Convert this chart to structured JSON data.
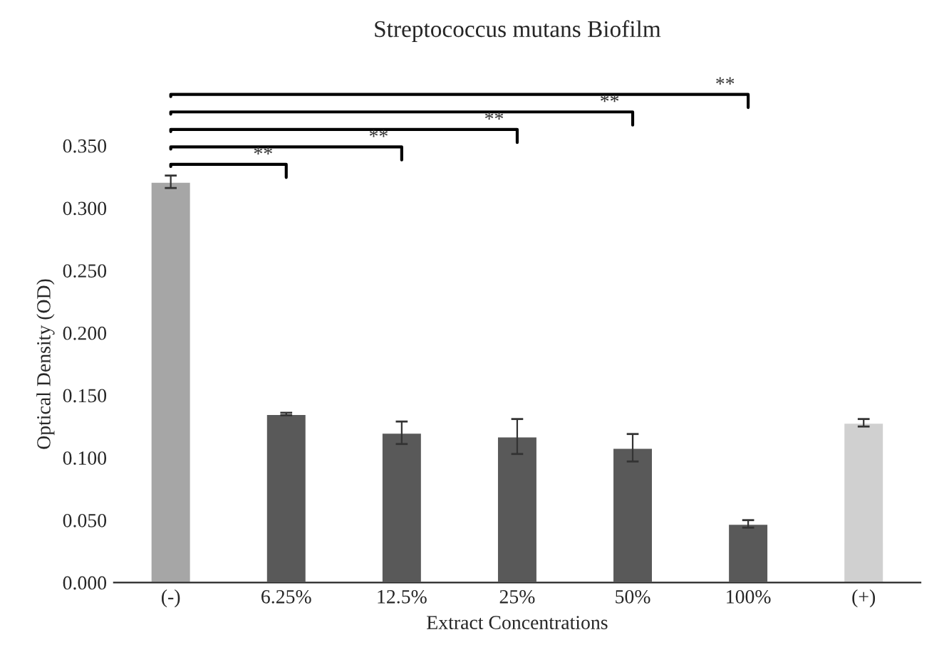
{
  "chart_data": {
    "type": "bar",
    "title": "Streptococcus mutans Biofilm",
    "xlabel": "Extract Concentrations",
    "ylabel": "Optical Density (OD)",
    "categories": [
      "(-)",
      "6.25%",
      "12.5%",
      "25%",
      "50%",
      "100%",
      "(+)"
    ],
    "values": [
      0.321,
      0.135,
      0.12,
      0.117,
      0.108,
      0.047,
      0.128
    ],
    "errors": [
      0.005,
      0.001,
      0.009,
      0.014,
      0.011,
      0.003,
      0.003
    ],
    "colors": [
      "#a6a6a6",
      "#595959",
      "#595959",
      "#595959",
      "#595959",
      "#595959",
      "#d0d0d0"
    ],
    "ylim": [
      0,
      0.35
    ],
    "yticks": [
      {
        "value": 0,
        "label": "0.000"
      },
      {
        "value": 0.05,
        "label": "0.050"
      },
      {
        "value": 0.1,
        "label": "0.100"
      },
      {
        "value": 0.15,
        "label": "0.150"
      },
      {
        "value": 0.2,
        "label": "0.200"
      },
      {
        "value": 0.25,
        "label": "0.250"
      },
      {
        "value": 0.3,
        "label": "0.300"
      },
      {
        "value": 0.35,
        "label": "0.350"
      }
    ],
    "grid": false,
    "annotations": [
      "**",
      "**",
      "**",
      "**",
      "**"
    ]
  }
}
